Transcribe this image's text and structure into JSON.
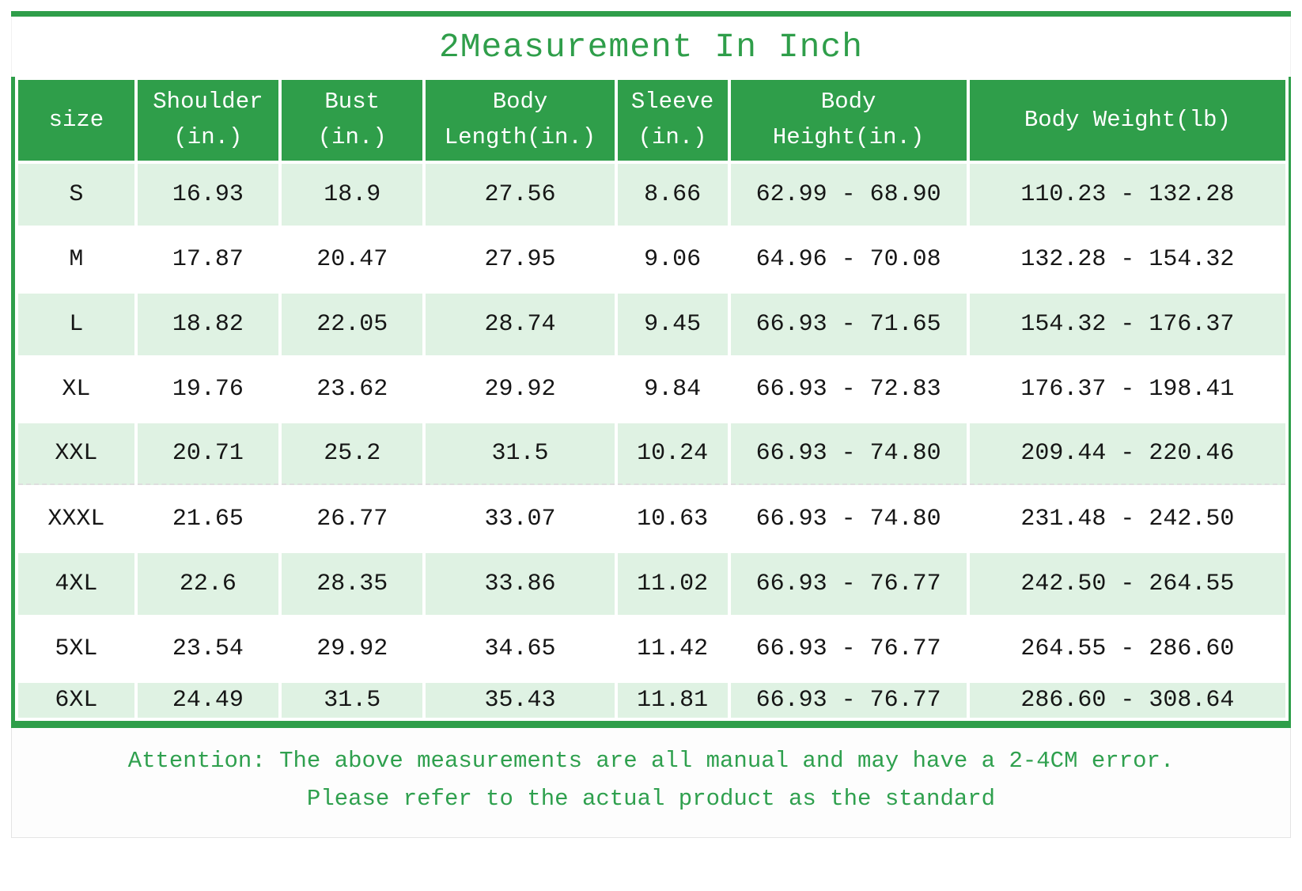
{
  "title": "2Measurement In Inch",
  "chart_data": {
    "type": "table",
    "title": "2Measurement In Inch",
    "columns": [
      "size",
      "Shoulder\n(in.)",
      "Bust\n(in.)",
      "Body\nLength(in.)",
      "Sleeve\n(in.)",
      "Body\nHeight(in.)",
      "Body Weight(lb)"
    ],
    "rows": [
      [
        "S",
        "16.93",
        "18.9",
        "27.56",
        "8.66",
        "62.99 - 68.90",
        "110.23 - 132.28"
      ],
      [
        "M",
        "17.87",
        "20.47",
        "27.95",
        "9.06",
        "64.96 - 70.08",
        "132.28 - 154.32"
      ],
      [
        "L",
        "18.82",
        "22.05",
        "28.74",
        "9.45",
        "66.93 - 71.65",
        "154.32 - 176.37"
      ],
      [
        "XL",
        "19.76",
        "23.62",
        "29.92",
        "9.84",
        "66.93 - 72.83",
        "176.37 - 198.41"
      ],
      [
        "XXL",
        "20.71",
        "25.2",
        "31.5",
        "10.24",
        "66.93 - 74.80",
        "209.44 - 220.46"
      ],
      [
        "XXXL",
        "21.65",
        "26.77",
        "33.07",
        "10.63",
        "66.93 - 74.80",
        "231.48 - 242.50"
      ],
      [
        "4XL",
        "22.6",
        "28.35",
        "33.86",
        "11.02",
        "66.93 - 76.77",
        "242.50 - 264.55"
      ],
      [
        "5XL",
        "23.54",
        "29.92",
        "34.65",
        "11.42",
        "66.93 - 76.77",
        "264.55 - 286.60"
      ],
      [
        "6XL",
        "24.49",
        "31.5",
        "35.43",
        "11.81",
        "66.93 - 76.77",
        "286.60 - 308.64"
      ]
    ],
    "row_striping": "odd rows light green, even rows white",
    "legend_position": "none",
    "grid": "white cell spacing gaps"
  },
  "footer": {
    "line1": "Attention: The above measurements are all manual and may have a 2-4CM error.",
    "line2": "Please refer to the actual product as the standard"
  },
  "colors": {
    "header_green": "#2f9e4a",
    "row_light_green": "#dff2e3",
    "title_green": "#2f9e4a",
    "footer_text_green": "#2fa04e",
    "cell_text": "#161616",
    "border_green": "#2f9e4a"
  }
}
